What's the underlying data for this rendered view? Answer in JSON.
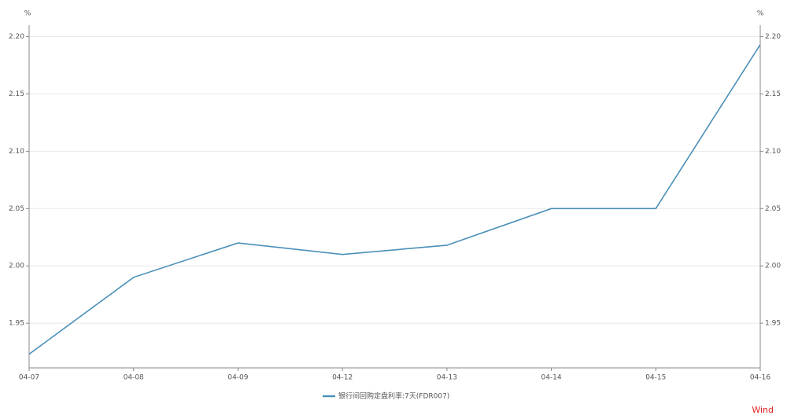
{
  "chart_data": {
    "type": "line",
    "y_unit": "%",
    "y2_unit": "%",
    "categories": [
      "04-07",
      "04-08",
      "04-09",
      "04-12",
      "04-13",
      "04-14",
      "04-15",
      "04-16"
    ],
    "series": [
      {
        "name": "银行间回购定盘利率:7天(FDR007)",
        "color": "#4a90b8",
        "values": [
          1.923,
          1.99,
          2.02,
          2.01,
          2.018,
          2.05,
          2.05,
          2.193
        ]
      }
    ],
    "ylim": [
      1.911,
      2.21
    ],
    "yticks": [
      {
        "value": 1.95,
        "label": "1.95"
      },
      {
        "value": 2.0,
        "label": "2.00"
      },
      {
        "value": 2.05,
        "label": "2.05"
      },
      {
        "value": 2.1,
        "label": "2.10"
      },
      {
        "value": 2.15,
        "label": "2.15"
      },
      {
        "value": 2.2,
        "label": "2.20"
      }
    ],
    "y2lim": [
      1.911,
      2.21
    ],
    "y2ticks": [
      {
        "value": 1.95,
        "label": "1.95"
      },
      {
        "value": 2.0,
        "label": "2.00"
      },
      {
        "value": 2.05,
        "label": "2.05"
      },
      {
        "value": 2.1,
        "label": "2.10"
      },
      {
        "value": 2.15,
        "label": "2.15"
      },
      {
        "value": 2.2,
        "label": "2.20"
      }
    ],
    "grid": true,
    "legend": "bottom",
    "watermark": "Wind"
  }
}
